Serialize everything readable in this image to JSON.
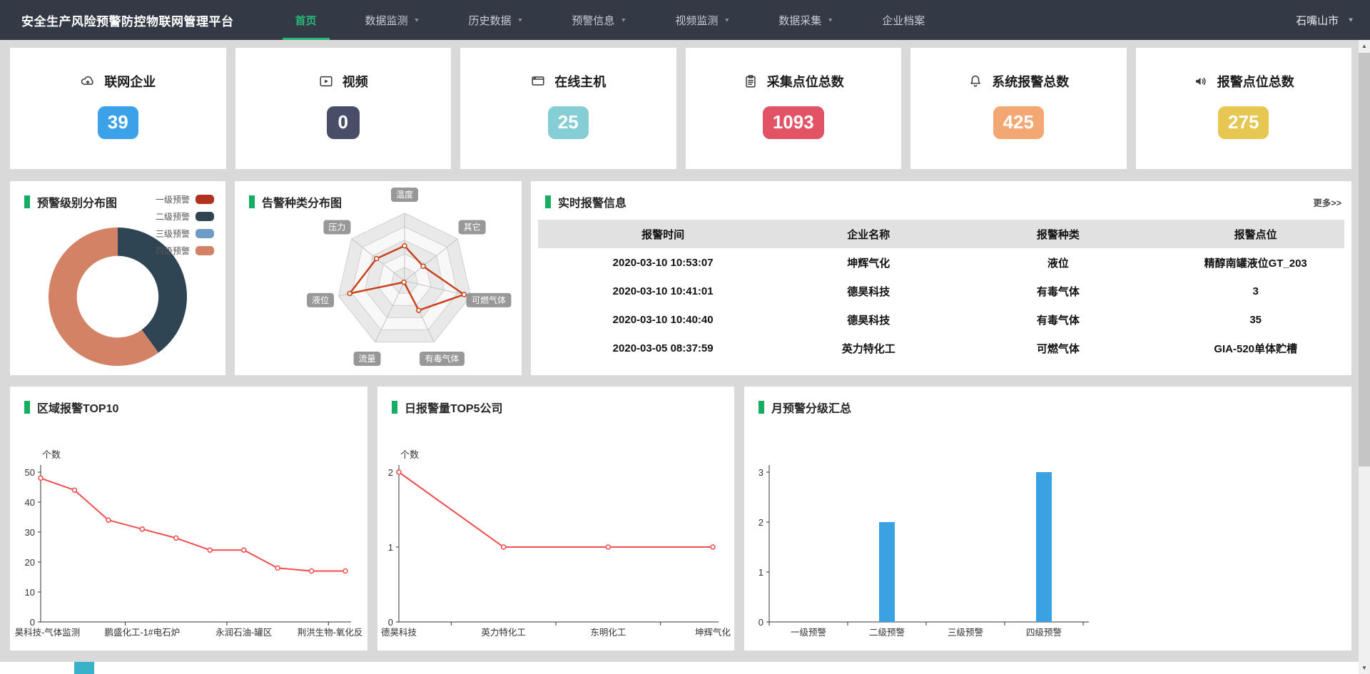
{
  "nav": {
    "title": "安全生产风险预警防控物联网管理平台",
    "items": [
      {
        "label": "首页",
        "active": true,
        "caret": false
      },
      {
        "label": "数据监测",
        "active": false,
        "caret": true
      },
      {
        "label": "历史数据",
        "active": false,
        "caret": true
      },
      {
        "label": "预警信息",
        "active": false,
        "caret": true
      },
      {
        "label": "视频监测",
        "active": false,
        "caret": true
      },
      {
        "label": "数据采集",
        "active": false,
        "caret": true
      },
      {
        "label": "企业档案",
        "active": false,
        "caret": false
      }
    ],
    "region": "石嘴山市"
  },
  "stats": [
    {
      "label": "联网企业",
      "value": "39",
      "color": "#3ba1e8",
      "icon": "cloud-link-icon"
    },
    {
      "label": "视频",
      "value": "0",
      "color": "#484e67",
      "icon": "video-icon"
    },
    {
      "label": "在线主机",
      "value": "25",
      "color": "#85ced6",
      "icon": "host-icon"
    },
    {
      "label": "采集点位总数",
      "value": "1093",
      "color": "#e25365",
      "icon": "clipboard-icon"
    },
    {
      "label": "系统报警总数",
      "value": "425",
      "color": "#f3a773",
      "icon": "bell-icon"
    },
    {
      "label": "报警点位总数",
      "value": "275",
      "color": "#e5c752",
      "icon": "speaker-icon"
    }
  ],
  "realtime": {
    "title": "实时报警信息",
    "more_label": "更多>>",
    "columns": [
      "报警时间",
      "企业名称",
      "报警种类",
      "报警点位"
    ],
    "rows": [
      [
        "2020-03-10 10:53:07",
        "坤辉气化",
        "液位",
        "精醇南罐液位GT_203"
      ],
      [
        "2020-03-10 10:41:01",
        "德昊科技",
        "有毒气体",
        "3"
      ],
      [
        "2020-03-10 10:40:40",
        "德昊科技",
        "有毒气体",
        "35"
      ],
      [
        "2020-03-05 08:37:59",
        "英力特化工",
        "可燃气体",
        "GIA-520单体贮槽"
      ]
    ]
  },
  "chart_data": [
    {
      "id": "warning-level-donut",
      "type": "pie",
      "title": "预警级别分布图",
      "legend": [
        "一级预警",
        "二级预警",
        "三级预警",
        "四级预警"
      ],
      "colors": [
        "#b0331f",
        "#2f4554",
        "#6d9cc4",
        "#d48265"
      ],
      "values": [
        0,
        2,
        0,
        3
      ],
      "legend_position": "right",
      "inner_radius_ratio": 0.59
    },
    {
      "id": "alarm-type-radar",
      "type": "radar",
      "title": "告警种类分布图",
      "indicators": [
        "温度",
        "其它",
        "可燃气体",
        "有毒气体",
        "流量",
        "液位",
        "压力"
      ],
      "values": [
        52,
        35,
        90,
        48,
        2,
        83,
        53
      ],
      "max": 100,
      "levels": 5,
      "line_color": "#c8431c"
    },
    {
      "id": "region-alarm-top10",
      "type": "line",
      "title": "区域报警TOP10",
      "ylabel": "个数",
      "ylim": [
        0,
        50
      ],
      "yticks": [
        0,
        10,
        20,
        30,
        40,
        50
      ],
      "categories": [
        "昊科技-气体监测",
        "",
        "",
        "鹏盛化工-1#电石炉",
        "",
        "",
        "永润石油-罐区",
        "",
        "",
        "荆洪生物-氧化反"
      ],
      "values": [
        48,
        44,
        34,
        31,
        28,
        24,
        24,
        18,
        17,
        17
      ],
      "line_color": "#f04e4e",
      "grid": false
    },
    {
      "id": "daily-alarm-top5",
      "type": "line",
      "title": "日报警量TOP5公司",
      "ylabel": "个数",
      "ylim": [
        0,
        2
      ],
      "yticks": [
        0,
        1,
        2
      ],
      "categories": [
        "德昊科技",
        "英力特化工",
        "东明化工",
        "坤辉气化"
      ],
      "values": [
        2,
        1,
        1,
        1
      ],
      "line_color": "#f04e4e",
      "grid": false
    },
    {
      "id": "monthly-warning-summary",
      "type": "bar",
      "title": "月预警分级汇总",
      "ylabel": "",
      "ylim": [
        0,
        3
      ],
      "yticks": [
        0,
        1,
        2,
        3
      ],
      "categories": [
        "一级预警",
        "二级预警",
        "三级预警",
        "四级预警"
      ],
      "values": [
        0,
        2,
        0,
        3
      ],
      "bar_color": "#3aa1e3",
      "grid": false
    }
  ],
  "footer": {
    "accent_color": "#38b2c9"
  }
}
